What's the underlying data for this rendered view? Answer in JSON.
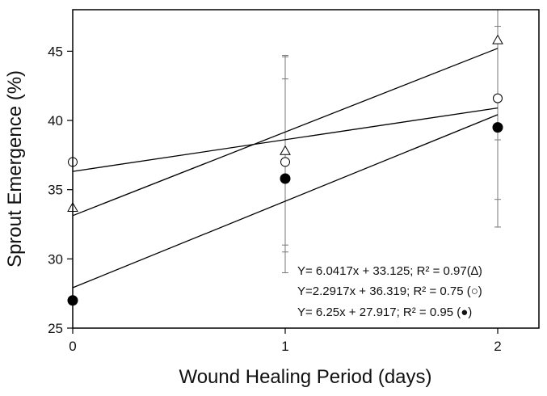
{
  "chart_data": {
    "type": "scatter",
    "xlabel": "Wound Healing Period (days)",
    "ylabel": "Sprout Emergence (%)",
    "xlim": [
      0,
      2.2
    ],
    "ylim": [
      25,
      48
    ],
    "x_ticks": [
      "0",
      "1",
      "2"
    ],
    "y_ticks": [
      "25",
      "30",
      "35",
      "40",
      "45"
    ],
    "grid": false,
    "legend": "bottom-right",
    "series": [
      {
        "marker": "triangle",
        "x": [
          0,
          1,
          2
        ],
        "y": [
          33.7,
          37.8,
          45.8
        ],
        "err_low": [
          null,
          29.0,
          34.3
        ],
        "err_high": [
          null,
          44.6,
          48.2
        ],
        "trend": {
          "slope": 6.0417,
          "intercept": 33.125
        },
        "equation": "Y= 6.0417x + 33.125; R² = 0.97(∆)"
      },
      {
        "marker": "circle-open",
        "x": [
          0,
          1,
          2
        ],
        "y": [
          37.0,
          37.0,
          41.6
        ],
        "err_low": [
          null,
          31.0,
          32.3
        ],
        "err_high": [
          null,
          43.0,
          46.8
        ],
        "trend": {
          "slope": 2.2917,
          "intercept": 36.319
        },
        "equation": "Y=2.2917x + 36.319; R² = 0.75 (○)"
      },
      {
        "marker": "circle-filled",
        "x": [
          0,
          1,
          2
        ],
        "y": [
          27.0,
          35.8,
          39.5
        ],
        "err_low": [
          null,
          30.5,
          38.6
        ],
        "err_high": [
          null,
          44.7,
          48.0
        ],
        "trend": {
          "slope": 6.25,
          "intercept": 27.917
        },
        "equation": "Y= 6.25x + 27.917; R² = 0.95 (●)"
      }
    ]
  }
}
